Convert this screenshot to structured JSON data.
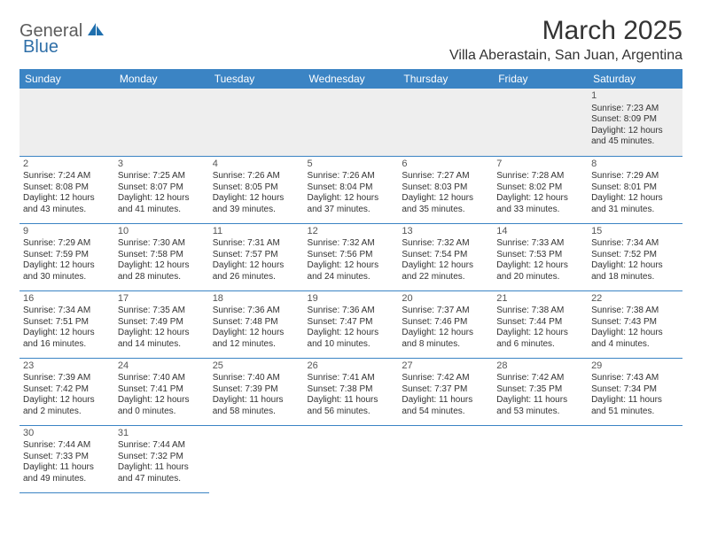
{
  "logo": {
    "part1": "General",
    "part2": "Blue"
  },
  "title": "March 2025",
  "location": "Villa Aberastain, San Juan, Argentina",
  "colors": {
    "header_bg": "#3b84c4",
    "header_text": "#ffffff",
    "cell_border": "#3b84c4",
    "body_text": "#333333",
    "logo_gray": "#5c5c5c",
    "logo_blue": "#2f6fa8",
    "empty_bg": "#eeeeee"
  },
  "fonts": {
    "title_size": 30,
    "location_size": 16,
    "header_size": 12,
    "cell_size": 10
  },
  "weekdays": [
    "Sunday",
    "Monday",
    "Tuesday",
    "Wednesday",
    "Thursday",
    "Friday",
    "Saturday"
  ],
  "weeks": [
    [
      null,
      null,
      null,
      null,
      null,
      null,
      {
        "d": "1",
        "sr": "Sunrise: 7:23 AM",
        "ss": "Sunset: 8:09 PM",
        "dl1": "Daylight: 12 hours",
        "dl2": "and 45 minutes."
      }
    ],
    [
      {
        "d": "2",
        "sr": "Sunrise: 7:24 AM",
        "ss": "Sunset: 8:08 PM",
        "dl1": "Daylight: 12 hours",
        "dl2": "and 43 minutes."
      },
      {
        "d": "3",
        "sr": "Sunrise: 7:25 AM",
        "ss": "Sunset: 8:07 PM",
        "dl1": "Daylight: 12 hours",
        "dl2": "and 41 minutes."
      },
      {
        "d": "4",
        "sr": "Sunrise: 7:26 AM",
        "ss": "Sunset: 8:05 PM",
        "dl1": "Daylight: 12 hours",
        "dl2": "and 39 minutes."
      },
      {
        "d": "5",
        "sr": "Sunrise: 7:26 AM",
        "ss": "Sunset: 8:04 PM",
        "dl1": "Daylight: 12 hours",
        "dl2": "and 37 minutes."
      },
      {
        "d": "6",
        "sr": "Sunrise: 7:27 AM",
        "ss": "Sunset: 8:03 PM",
        "dl1": "Daylight: 12 hours",
        "dl2": "and 35 minutes."
      },
      {
        "d": "7",
        "sr": "Sunrise: 7:28 AM",
        "ss": "Sunset: 8:02 PM",
        "dl1": "Daylight: 12 hours",
        "dl2": "and 33 minutes."
      },
      {
        "d": "8",
        "sr": "Sunrise: 7:29 AM",
        "ss": "Sunset: 8:01 PM",
        "dl1": "Daylight: 12 hours",
        "dl2": "and 31 minutes."
      }
    ],
    [
      {
        "d": "9",
        "sr": "Sunrise: 7:29 AM",
        "ss": "Sunset: 7:59 PM",
        "dl1": "Daylight: 12 hours",
        "dl2": "and 30 minutes."
      },
      {
        "d": "10",
        "sr": "Sunrise: 7:30 AM",
        "ss": "Sunset: 7:58 PM",
        "dl1": "Daylight: 12 hours",
        "dl2": "and 28 minutes."
      },
      {
        "d": "11",
        "sr": "Sunrise: 7:31 AM",
        "ss": "Sunset: 7:57 PM",
        "dl1": "Daylight: 12 hours",
        "dl2": "and 26 minutes."
      },
      {
        "d": "12",
        "sr": "Sunrise: 7:32 AM",
        "ss": "Sunset: 7:56 PM",
        "dl1": "Daylight: 12 hours",
        "dl2": "and 24 minutes."
      },
      {
        "d": "13",
        "sr": "Sunrise: 7:32 AM",
        "ss": "Sunset: 7:54 PM",
        "dl1": "Daylight: 12 hours",
        "dl2": "and 22 minutes."
      },
      {
        "d": "14",
        "sr": "Sunrise: 7:33 AM",
        "ss": "Sunset: 7:53 PM",
        "dl1": "Daylight: 12 hours",
        "dl2": "and 20 minutes."
      },
      {
        "d": "15",
        "sr": "Sunrise: 7:34 AM",
        "ss": "Sunset: 7:52 PM",
        "dl1": "Daylight: 12 hours",
        "dl2": "and 18 minutes."
      }
    ],
    [
      {
        "d": "16",
        "sr": "Sunrise: 7:34 AM",
        "ss": "Sunset: 7:51 PM",
        "dl1": "Daylight: 12 hours",
        "dl2": "and 16 minutes."
      },
      {
        "d": "17",
        "sr": "Sunrise: 7:35 AM",
        "ss": "Sunset: 7:49 PM",
        "dl1": "Daylight: 12 hours",
        "dl2": "and 14 minutes."
      },
      {
        "d": "18",
        "sr": "Sunrise: 7:36 AM",
        "ss": "Sunset: 7:48 PM",
        "dl1": "Daylight: 12 hours",
        "dl2": "and 12 minutes."
      },
      {
        "d": "19",
        "sr": "Sunrise: 7:36 AM",
        "ss": "Sunset: 7:47 PM",
        "dl1": "Daylight: 12 hours",
        "dl2": "and 10 minutes."
      },
      {
        "d": "20",
        "sr": "Sunrise: 7:37 AM",
        "ss": "Sunset: 7:46 PM",
        "dl1": "Daylight: 12 hours",
        "dl2": "and 8 minutes."
      },
      {
        "d": "21",
        "sr": "Sunrise: 7:38 AM",
        "ss": "Sunset: 7:44 PM",
        "dl1": "Daylight: 12 hours",
        "dl2": "and 6 minutes."
      },
      {
        "d": "22",
        "sr": "Sunrise: 7:38 AM",
        "ss": "Sunset: 7:43 PM",
        "dl1": "Daylight: 12 hours",
        "dl2": "and 4 minutes."
      }
    ],
    [
      {
        "d": "23",
        "sr": "Sunrise: 7:39 AM",
        "ss": "Sunset: 7:42 PM",
        "dl1": "Daylight: 12 hours",
        "dl2": "and 2 minutes."
      },
      {
        "d": "24",
        "sr": "Sunrise: 7:40 AM",
        "ss": "Sunset: 7:41 PM",
        "dl1": "Daylight: 12 hours",
        "dl2": "and 0 minutes."
      },
      {
        "d": "25",
        "sr": "Sunrise: 7:40 AM",
        "ss": "Sunset: 7:39 PM",
        "dl1": "Daylight: 11 hours",
        "dl2": "and 58 minutes."
      },
      {
        "d": "26",
        "sr": "Sunrise: 7:41 AM",
        "ss": "Sunset: 7:38 PM",
        "dl1": "Daylight: 11 hours",
        "dl2": "and 56 minutes."
      },
      {
        "d": "27",
        "sr": "Sunrise: 7:42 AM",
        "ss": "Sunset: 7:37 PM",
        "dl1": "Daylight: 11 hours",
        "dl2": "and 54 minutes."
      },
      {
        "d": "28",
        "sr": "Sunrise: 7:42 AM",
        "ss": "Sunset: 7:35 PM",
        "dl1": "Daylight: 11 hours",
        "dl2": "and 53 minutes."
      },
      {
        "d": "29",
        "sr": "Sunrise: 7:43 AM",
        "ss": "Sunset: 7:34 PM",
        "dl1": "Daylight: 11 hours",
        "dl2": "and 51 minutes."
      }
    ],
    [
      {
        "d": "30",
        "sr": "Sunrise: 7:44 AM",
        "ss": "Sunset: 7:33 PM",
        "dl1": "Daylight: 11 hours",
        "dl2": "and 49 minutes."
      },
      {
        "d": "31",
        "sr": "Sunrise: 7:44 AM",
        "ss": "Sunset: 7:32 PM",
        "dl1": "Daylight: 11 hours",
        "dl2": "and 47 minutes."
      },
      null,
      null,
      null,
      null,
      null
    ]
  ]
}
